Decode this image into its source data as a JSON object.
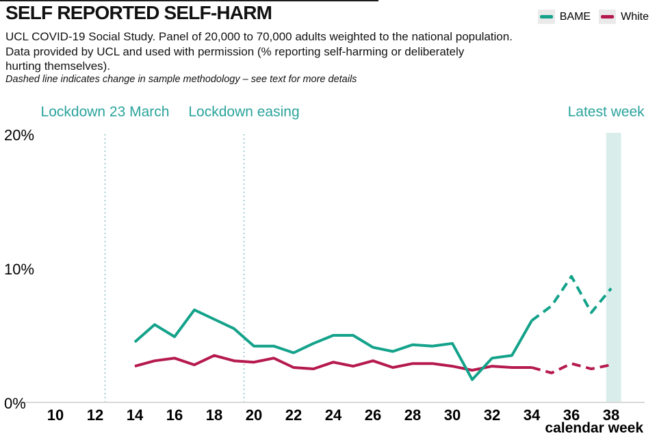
{
  "header": {
    "title": "SELF REPORTED SELF-HARM",
    "subtitle_lines": [
      "UCL COVID-19 Social Study. Panel of 20,000 to 70,000 adults weighted to the national population.",
      "Data provided by UCL and used with permission (% reporting self-harming or deliberately",
      "hurting themselves)."
    ],
    "note": "Dashed line indicates change in sample methodology – see text for more details"
  },
  "legend": [
    {
      "label": "BAME",
      "color": "#13a28a"
    },
    {
      "label": "White",
      "color": "#b5194d"
    }
  ],
  "colors": {
    "bame_line": "#13a28a",
    "white_line": "#b5194d",
    "annotation_text": "#2aa39c",
    "event_line": "#a5cdd1",
    "band": "#d9eeea",
    "axis": "#d9d9d9",
    "legend_swatch_bg": "#eaeaea"
  },
  "chart_data": {
    "type": "line",
    "title": "SELF REPORTED SELF-HARM",
    "xlabel": "calendar week",
    "ylabel": "%",
    "xlim": [
      9,
      38.6
    ],
    "ylim": [
      0,
      20
    ],
    "grid": false,
    "legend_position": "top-right",
    "x": [
      14,
      15,
      16,
      17,
      18,
      19,
      20,
      21,
      22,
      23,
      24,
      25,
      26,
      27,
      28,
      29,
      30,
      31,
      32,
      33,
      34,
      35,
      36,
      37,
      38
    ],
    "series": [
      {
        "name": "White",
        "color": "#b5194d",
        "solid_until_week": 34,
        "values": [
          2.7,
          3.1,
          3.3,
          2.8,
          3.5,
          3.1,
          3.0,
          3.3,
          2.6,
          2.5,
          3.0,
          2.7,
          3.1,
          2.6,
          2.9,
          2.9,
          2.7,
          2.4,
          2.7,
          2.6,
          2.6,
          2.2,
          2.9,
          2.5,
          2.8
        ]
      },
      {
        "name": "BAME",
        "color": "#13a28a",
        "solid_until_week": 34,
        "values": [
          4.5,
          5.8,
          4.9,
          6.9,
          6.2,
          5.5,
          4.2,
          4.2,
          3.7,
          4.4,
          5.0,
          5.0,
          4.1,
          3.8,
          4.3,
          4.2,
          4.4,
          1.7,
          3.3,
          3.5,
          6.1,
          7.2,
          9.4,
          6.7,
          8.5
        ]
      }
    ],
    "x_ticks": [
      10,
      12,
      14,
      16,
      18,
      20,
      22,
      24,
      26,
      28,
      30,
      32,
      34,
      36,
      38
    ],
    "y_ticks": [
      {
        "value": 0,
        "label": "0%"
      },
      {
        "value": 10,
        "label": "10%"
      },
      {
        "value": 20,
        "label": "20%"
      }
    ],
    "annotations": [
      {
        "type": "line",
        "label": "Lockdown 23 March",
        "week": 12.5
      },
      {
        "type": "line",
        "label": "Lockdown easing",
        "week": 19.5
      },
      {
        "type": "band",
        "label": "Latest week",
        "week_from": 37.75,
        "week_to": 38.5
      }
    ],
    "dashed_segment_note": "dashed from week 34 onwards = change in sample methodology"
  }
}
